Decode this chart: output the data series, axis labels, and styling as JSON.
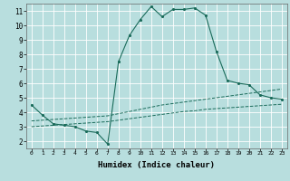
{
  "xlabel": "Humidex (Indice chaleur)",
  "background_color": "#b8dede",
  "grid_color": "#e8f4f4",
  "line_color": "#1a6b5a",
  "xlim": [
    -0.5,
    23.5
  ],
  "ylim": [
    1.5,
    11.5
  ],
  "xticks": [
    0,
    1,
    2,
    3,
    4,
    5,
    6,
    7,
    8,
    9,
    10,
    11,
    12,
    13,
    14,
    15,
    16,
    17,
    18,
    19,
    20,
    21,
    22,
    23
  ],
  "yticks": [
    2,
    3,
    4,
    5,
    6,
    7,
    8,
    9,
    10,
    11
  ],
  "curve_main_x": [
    0,
    1,
    2,
    3,
    4,
    5,
    6,
    7,
    8,
    9,
    10,
    11,
    12,
    13,
    14,
    15,
    16,
    17,
    18,
    19,
    20,
    21,
    22,
    23
  ],
  "curve_main_y": [
    4.5,
    3.8,
    3.2,
    3.1,
    3.0,
    2.7,
    2.6,
    1.8,
    7.5,
    9.3,
    10.4,
    11.3,
    10.6,
    11.1,
    11.1,
    11.2,
    10.7,
    8.2,
    6.2,
    6.0,
    5.9,
    5.2,
    5.0,
    4.9
  ],
  "curve_upper_x": [
    0,
    1,
    2,
    3,
    4,
    5,
    6,
    7,
    8,
    9,
    10,
    11,
    12,
    13,
    14,
    15,
    16,
    17,
    18,
    19,
    20,
    21,
    22,
    23
  ],
  "curve_upper_y": [
    3.4,
    3.45,
    3.5,
    3.55,
    3.6,
    3.65,
    3.7,
    3.75,
    3.9,
    4.05,
    4.2,
    4.35,
    4.5,
    4.6,
    4.7,
    4.8,
    4.9,
    5.0,
    5.1,
    5.2,
    5.3,
    5.4,
    5.5,
    5.6
  ],
  "curve_lower_x": [
    0,
    1,
    2,
    3,
    4,
    5,
    6,
    7,
    8,
    9,
    10,
    11,
    12,
    13,
    14,
    15,
    16,
    17,
    18,
    19,
    20,
    21,
    22,
    23
  ],
  "curve_lower_y": [
    3.0,
    3.05,
    3.1,
    3.15,
    3.2,
    3.25,
    3.3,
    3.35,
    3.45,
    3.55,
    3.65,
    3.75,
    3.85,
    3.95,
    4.05,
    4.1,
    4.2,
    4.25,
    4.3,
    4.35,
    4.4,
    4.45,
    4.5,
    4.55
  ]
}
